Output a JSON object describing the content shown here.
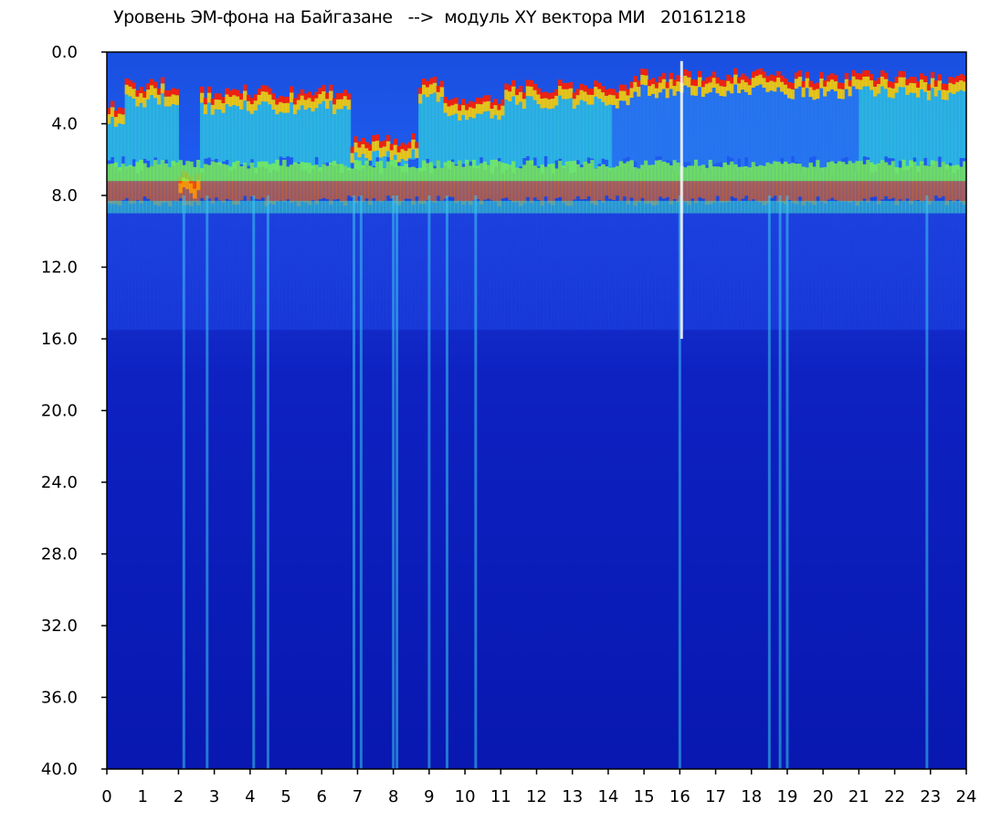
{
  "title": "Уровень ЭМ-фона на Байгазане   -->  модуль XY вектора МИ   20161218",
  "chart_data": {
    "type": "heatmap",
    "title": "Уровень ЭМ-фона на Байгазане   -->  модуль XY вектора МИ   20161218",
    "xlabel": "",
    "ylabel": "",
    "x_range": [
      0,
      24
    ],
    "y_range": [
      0.0,
      40.0
    ],
    "y_inverted": true,
    "x_ticks": [
      "0",
      "1",
      "2",
      "3",
      "4",
      "5",
      "6",
      "7",
      "8",
      "9",
      "10",
      "11",
      "12",
      "13",
      "14",
      "15",
      "16",
      "17",
      "18",
      "19",
      "20",
      "21",
      "22",
      "23",
      "24"
    ],
    "y_ticks": [
      "0.0",
      "4.0",
      "8.0",
      "12.0",
      "16.0",
      "20.0",
      "24.0",
      "28.0",
      "32.0",
      "36.0",
      "40.0"
    ],
    "colormap": [
      "#0a14b4",
      "#1446e6",
      "#28a0f0",
      "#3cf0c8",
      "#96ff3c",
      "#ffff00",
      "#ff8c00",
      "#ff0000"
    ],
    "background_color": "#0a1eb4",
    "grid": false,
    "legend": "none"
  }
}
